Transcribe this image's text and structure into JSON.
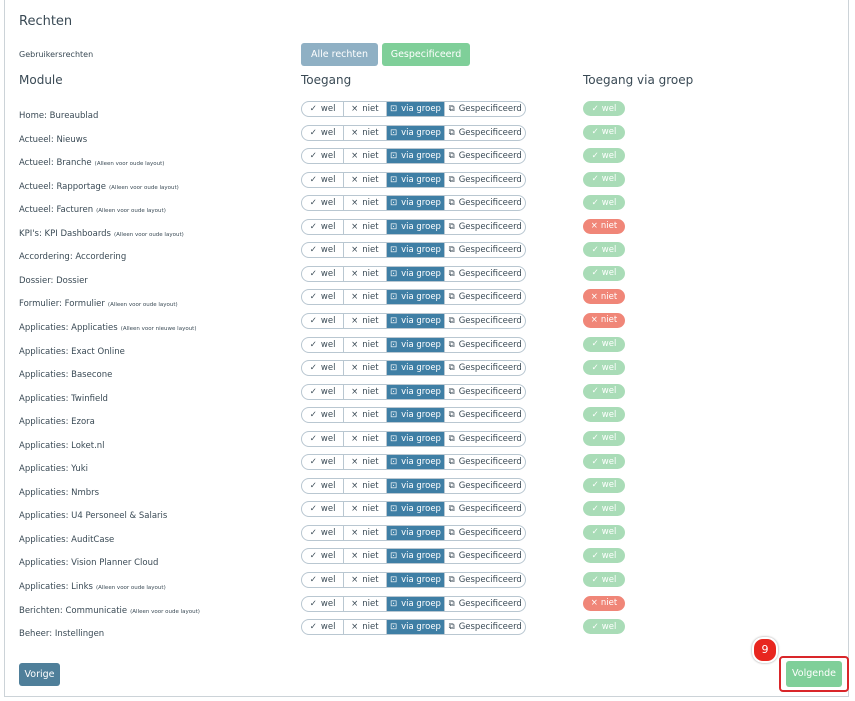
{
  "header": {
    "title": "Rechten",
    "rights_label": "Gebruikersrechten",
    "rights_options": [
      "Alle rechten",
      "Gespecificeerd"
    ]
  },
  "columns": [
    "Module",
    "Toegang",
    "Toegang via groep"
  ],
  "access_options": [
    "wel",
    "niet",
    "via groep",
    "Gespecificeerd"
  ],
  "rows": [
    {
      "module": "Home: Bureaublad",
      "group": "wel"
    },
    {
      "module": "Actueel: Nieuws",
      "group": "wel"
    },
    {
      "module": "Actueel: Branche",
      "note": "(Alleen voor oude layout)",
      "group": "wel"
    },
    {
      "module": "Actueel: Rapportage",
      "note": "(Alleen voor oude layout)",
      "group": "wel"
    },
    {
      "module": "Actueel: Facturen",
      "note": "(Alleen voor oude layout)",
      "group": "wel"
    },
    {
      "module": "KPI's: KPI Dashboards",
      "note": "(Alleen voor oude layout)",
      "group": "niet"
    },
    {
      "module": "Accordering: Accordering",
      "group": "wel"
    },
    {
      "module": "Dossier: Dossier",
      "group": "wel"
    },
    {
      "module": "Formulier: Formulier",
      "note": "(Alleen voor oude layout)",
      "group": "niet"
    },
    {
      "module": "Applicaties: Applicaties",
      "note": "(Alleen voor nieuwe layout)",
      "group": "niet"
    },
    {
      "module": "Applicaties: Exact Online",
      "group": "wel"
    },
    {
      "module": "Applicaties: Basecone",
      "group": "wel"
    },
    {
      "module": "Applicaties: Twinfield",
      "group": "wel"
    },
    {
      "module": "Applicaties: Ezora",
      "group": "wel"
    },
    {
      "module": "Applicaties: Loket.nl",
      "group": "wel"
    },
    {
      "module": "Applicaties: Yuki",
      "group": "wel"
    },
    {
      "module": "Applicaties: Nmbrs",
      "group": "wel"
    },
    {
      "module": "Applicaties: U4 Personeel & Salaris",
      "group": "wel"
    },
    {
      "module": "Applicaties: AuditCase",
      "group": "wel"
    },
    {
      "module": "Applicaties: Vision Planner Cloud",
      "group": "wel"
    },
    {
      "module": "Applicaties: Links",
      "note": "(Alleen voor oude layout)",
      "group": "wel"
    },
    {
      "module": "Berichten: Communicatie",
      "note": "(Alleen voor oude layout)",
      "group": "niet"
    },
    {
      "module": "Beheer: Instellingen",
      "group": "wel"
    }
  ],
  "footer": {
    "previous": "Vorige",
    "next": "Volgende",
    "step": "9"
  }
}
